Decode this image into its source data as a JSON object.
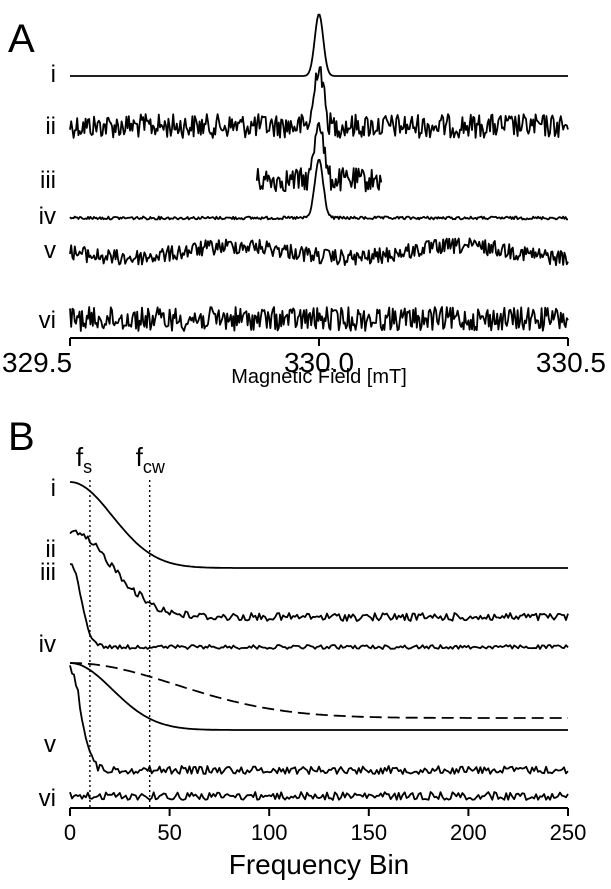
{
  "chart_data": [
    {
      "panel": "A",
      "type": "line",
      "xlabel": "Magnetic Field [mT]",
      "xlim": [
        329.5,
        330.5
      ],
      "xticks": [
        329.5,
        330.0,
        330.5
      ],
      "xtick_labels": [
        "329.5",
        "330.0",
        "330.5"
      ],
      "series": [
        {
          "name": "i",
          "shape": "gaussian",
          "center": 330.0,
          "width": 0.012,
          "noise": 0.0,
          "range": [
            329.5,
            330.5
          ]
        },
        {
          "name": "ii",
          "shape": "gaussian",
          "center": 330.0,
          "width": 0.012,
          "noise": 0.9,
          "range": [
            329.5,
            330.5
          ]
        },
        {
          "name": "iii",
          "shape": "gaussian",
          "center": 330.0,
          "width": 0.012,
          "noise": 0.7,
          "range": [
            329.875,
            330.125
          ]
        },
        {
          "name": "iv",
          "shape": "gaussian",
          "center": 330.0,
          "width": 0.012,
          "noise": 0.05,
          "range": [
            329.5,
            330.5
          ]
        },
        {
          "name": "v",
          "shape": "gaussian",
          "center": 330.0,
          "width": 0.012,
          "noise": 0.35,
          "range": [
            329.5,
            330.5
          ]
        },
        {
          "name": "vi",
          "shape": "flat",
          "noise": 0.9,
          "range": [
            329.5,
            330.5
          ]
        }
      ]
    },
    {
      "panel": "B",
      "type": "line",
      "xlabel": "Frequency Bin",
      "xlim": [
        0,
        250
      ],
      "xticks": [
        0,
        50,
        100,
        150,
        200,
        250
      ],
      "xtick_labels": [
        "0",
        "50",
        "100",
        "150",
        "200",
        "250"
      ],
      "markers": [
        {
          "label": "f",
          "subscript": "s",
          "x": 10
        },
        {
          "label": "f",
          "subscript": "cw",
          "x": 40
        }
      ],
      "series": [
        {
          "name": "i",
          "shape": "decay",
          "decay_width": 40,
          "noise": 0.0,
          "style": "solid"
        },
        {
          "name": "ii",
          "shape": "decay",
          "decay_width": 40,
          "noise": 0.06,
          "style": "solid"
        },
        {
          "name": "iii",
          "shape": "decay",
          "decay_width": 10,
          "noise": 0.02,
          "style": "solid"
        },
        {
          "name": "iv",
          "shape": "decay",
          "decay_width": 100,
          "noise": 0.0,
          "style": "dashed"
        },
        {
          "name": "iv",
          "shape": "decay",
          "decay_width": 40,
          "noise": 0.0,
          "style": "solid"
        },
        {
          "name": "v",
          "shape": "decay",
          "decay_width": 10,
          "noise": 0.06,
          "style": "solid"
        },
        {
          "name": "vi",
          "shape": "flat",
          "noise": 0.05,
          "style": "solid"
        }
      ]
    }
  ]
}
